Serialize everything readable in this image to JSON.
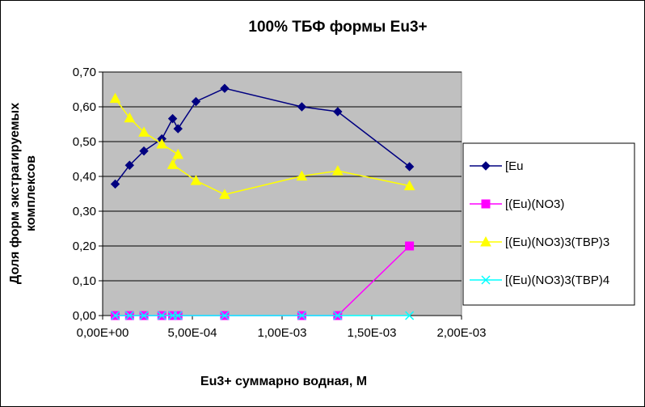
{
  "chart_data": {
    "type": "line",
    "title": "100%  ТБФ  формы Eu3+",
    "xlabel": "Eu3+ суммарно   водная, М",
    "ylabel_lines": [
      "Доля форм экстрагируемых",
      "комплексов"
    ],
    "xlim": [
      0,
      0.002
    ],
    "ylim": [
      0,
      0.7
    ],
    "x_ticks": [
      "0,00E+00",
      "5,00E-04",
      "1,00E-03",
      "1,50E-03",
      "2,00E-03"
    ],
    "y_ticks": [
      "0,00",
      "0,10",
      "0,20",
      "0,30",
      "0,40",
      "0,50",
      "0,60",
      "0,70"
    ],
    "grid": "horizontal",
    "plot_background": "#c0c0c0",
    "legend_position": "right",
    "series": [
      {
        "name": "[Eu",
        "color": "#000080",
        "marker": "diamond",
        "x": [
          7e-05,
          0.00015,
          0.00023,
          0.00033,
          0.00039,
          0.00042,
          0.00052,
          0.00068,
          0.00111,
          0.00131,
          0.00171
        ],
        "y": [
          0.378,
          0.432,
          0.473,
          0.508,
          0.566,
          0.537,
          0.615,
          0.653,
          0.6,
          0.586,
          0.428
        ]
      },
      {
        "name": "[(Eu)(NO3)",
        "color": "#ff00ff",
        "marker": "square",
        "x": [
          7e-05,
          0.00015,
          0.00023,
          0.00033,
          0.00039,
          0.00042,
          0.00068,
          0.00111,
          0.00131,
          0.00171
        ],
        "y": [
          0,
          0,
          0,
          0,
          0,
          0,
          0,
          0,
          0,
          0.2
        ]
      },
      {
        "name": "[(Eu)(NO3)3(TBP)3",
        "color": "#ffff00",
        "marker": "triangle",
        "x": [
          7e-05,
          0.00015,
          0.00023,
          0.00033,
          0.00042,
          0.00039,
          0.00052,
          0.00068,
          0.00111,
          0.00131,
          0.00171
        ],
        "y": [
          0.624,
          0.568,
          0.527,
          0.493,
          0.463,
          0.434,
          0.388,
          0.348,
          0.401,
          0.416,
          0.373
        ]
      },
      {
        "name": "[(Eu)(NO3)3(TBP)4",
        "color": "#00ffff",
        "marker": "x",
        "x": [
          7e-05,
          0.00015,
          0.00023,
          0.00033,
          0.00039,
          0.00042,
          0.00068,
          0.00111,
          0.00131,
          0.00171
        ],
        "y": [
          0,
          0,
          0,
          0,
          0,
          0,
          0,
          0,
          0,
          0
        ]
      }
    ]
  }
}
